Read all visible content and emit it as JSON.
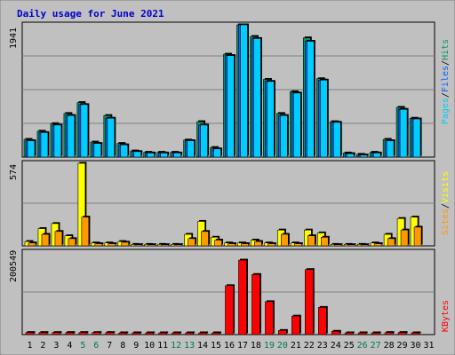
{
  "chart_data": [
    {
      "type": "bar",
      "title": "Daily usage for June 2021",
      "panel": "top",
      "y_max_label": "1941",
      "ylabel_parts": [
        "Pages",
        "/",
        "Files",
        "/",
        "Hits"
      ],
      "categories": [
        "1",
        "2",
        "3",
        "4",
        "5",
        "6",
        "7",
        "8",
        "9",
        "10",
        "11",
        "12",
        "13",
        "14",
        "15",
        "16",
        "17",
        "18",
        "19",
        "20",
        "21",
        "22",
        "23",
        "24",
        "25",
        "26",
        "27",
        "28",
        "29",
        "30",
        "31"
      ],
      "series": [
        {
          "name": "Hits",
          "values": [
            260,
            380,
            490,
            640,
            800,
            220,
            610,
            200,
            90,
            70,
            70,
            70,
            250,
            520,
            140,
            1510,
            1941,
            1770,
            1140,
            640,
            960,
            1750,
            1150,
            520,
            60,
            40,
            70,
            260,
            730,
            570,
            0
          ]
        },
        {
          "name": "Files",
          "values": [
            240,
            360,
            470,
            610,
            770,
            200,
            570,
            180,
            80,
            60,
            60,
            60,
            240,
            470,
            120,
            1490,
            1941,
            1740,
            1110,
            610,
            940,
            1700,
            1130,
            510,
            50,
            30,
            60,
            240,
            700,
            560,
            0
          ]
        },
        {
          "name": "Pages",
          "values": [
            30,
            40,
            40,
            30,
            40,
            20,
            20,
            10,
            10,
            10,
            10,
            10,
            20,
            10,
            10,
            10,
            10,
            10,
            10,
            10,
            10,
            10,
            10,
            10,
            10,
            10,
            10,
            10,
            10,
            10,
            0
          ]
        }
      ],
      "colors": {
        "Hits": "#009966",
        "Files": "#0066ff",
        "Pages": "#00ccff"
      }
    },
    {
      "type": "bar",
      "panel": "middle",
      "y_max_label": "574",
      "ylabel_parts": [
        "Sites",
        "/",
        "Visits"
      ],
      "series": [
        {
          "name": "Visits",
          "values": [
            30,
            120,
            155,
            70,
            80,
            20,
            20,
            30,
            10,
            10,
            10,
            10,
            80,
            170,
            60,
            20,
            20,
            40,
            20,
            110,
            20,
            110,
            90,
            10,
            10,
            10,
            20,
            80,
            190,
            200,
            0
          ]
        },
        {
          "name": "Sites",
          "values": [
            20,
            80,
            100,
            50,
            70,
            15,
            15,
            25,
            8,
            8,
            8,
            8,
            50,
            100,
            40,
            15,
            15,
            30,
            15,
            80,
            15,
            70,
            60,
            8,
            8,
            8,
            15,
            50,
            110,
            130,
            0
          ]
        }
      ],
      "extra_values": {
        "5": 574
      },
      "colors": {
        "Visits": "#ffff00",
        "Sites": "#ff9900"
      }
    },
    {
      "type": "bar",
      "panel": "bottom",
      "y_max_label": "200549",
      "ylabel_parts": [
        "KBytes"
      ],
      "series": [
        {
          "name": "KBytes",
          "values": [
            5000,
            5000,
            5000,
            5000,
            5000,
            5000,
            5000,
            4000,
            3000,
            3000,
            3000,
            3000,
            3000,
            3000,
            3000,
            119000,
            181000,
            146000,
            80000,
            10000,
            45000,
            158000,
            66000,
            8000,
            3000,
            3000,
            4000,
            5000,
            5000,
            4000,
            0
          ]
        }
      ],
      "colors": {
        "KBytes": "#ff0000"
      }
    }
  ],
  "label_colors": {
    "weekend": "#007755",
    "weekday": "#000000",
    "title": "#0000cc",
    "background": "#c0c0c0",
    "plot_bg": "#c0c0c0",
    "grid": "#7f7f7f"
  }
}
